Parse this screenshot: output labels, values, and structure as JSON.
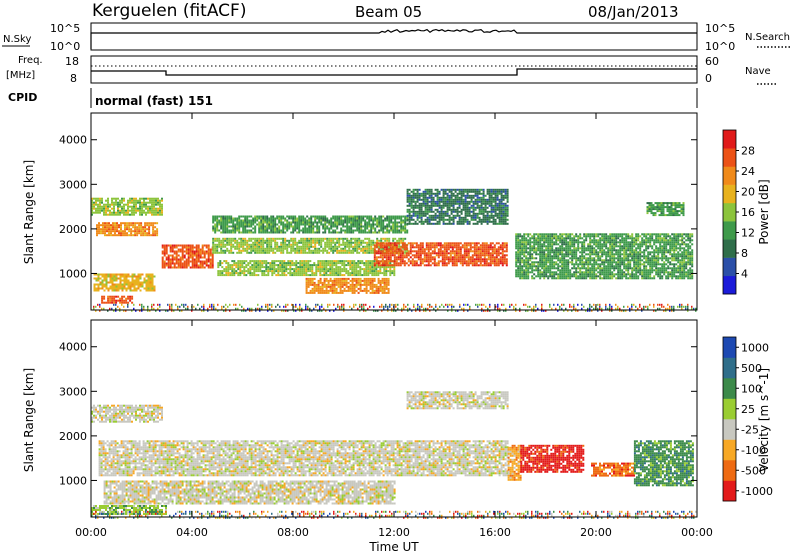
{
  "header": {
    "station": "Kerguelen (fitACF)",
    "beam": "Beam 05",
    "date": "08/Jan/2013"
  },
  "panels": {
    "nsky": {
      "label": "N.Sky",
      "tick_top": "10^5",
      "tick_bottom": "10^0"
    },
    "nsearch": {
      "label": "N.Search",
      "tick_top": "10^5",
      "tick_bottom": "10^0"
    },
    "freq": {
      "label_line1": "Freq.",
      "label_line2": "[MHz]",
      "ticks": [
        "18",
        "8"
      ]
    },
    "nave": {
      "label": "Nave",
      "ticks": [
        "60",
        "0"
      ]
    },
    "cpid": {
      "label": "CPID",
      "value": "normal (fast) 151"
    }
  },
  "colors": {
    "power": [
      "#1b1bd9",
      "#2b4fa8",
      "#2f6e4a",
      "#3e9a4a",
      "#8cc43c",
      "#e8b21e",
      "#f08a1a",
      "#ec5216",
      "#e01a1a"
    ],
    "velocity": [
      "#e31a1a",
      "#ee6a12",
      "#f7a825",
      "#c8c8c0",
      "#9acd32",
      "#3c8a4a",
      "#2f6e8a",
      "#1d49b2"
    ]
  },
  "chart_data": [
    {
      "type": "heatmap",
      "name": "power",
      "xlabel": "",
      "ylabel": "Slant Range [km]",
      "xlim": [
        0,
        24
      ],
      "ylim": [
        180,
        4600
      ],
      "x_ticks": [
        "00:00",
        "04:00",
        "08:00",
        "12:00",
        "16:00",
        "20:00",
        "00:00"
      ],
      "y_ticks": [
        1000,
        2000,
        3000,
        4000
      ],
      "colorbar": {
        "label": "Power [dB]",
        "ticks": [
          "4",
          "8",
          "12",
          "16",
          "20",
          "24",
          "28"
        ],
        "range": [
          0,
          30
        ]
      },
      "bands": [
        {
          "t": [
            0,
            2.8
          ],
          "r": [
            2300,
            2700
          ],
          "level": 16
        },
        {
          "t": [
            0.2,
            2.6
          ],
          "r": [
            1850,
            2150
          ],
          "level": 22
        },
        {
          "t": [
            0.1,
            2.5
          ],
          "r": [
            600,
            1000
          ],
          "level": 18
        },
        {
          "t": [
            0.4,
            1.6
          ],
          "r": [
            350,
            500
          ],
          "level": 26
        },
        {
          "t": [
            2.8,
            4.8
          ],
          "r": [
            1150,
            1650
          ],
          "level": 28
        },
        {
          "t": [
            4.8,
            12.5
          ],
          "r": [
            1450,
            1800
          ],
          "level": 16
        },
        {
          "t": [
            4.8,
            12.5
          ],
          "r": [
            1900,
            2300
          ],
          "level": 12
        },
        {
          "t": [
            5.0,
            12.0
          ],
          "r": [
            950,
            1300
          ],
          "level": 14
        },
        {
          "t": [
            8.5,
            11.8
          ],
          "r": [
            550,
            900
          ],
          "level": 24
        },
        {
          "t": [
            11.2,
            16.5
          ],
          "r": [
            1200,
            1700
          ],
          "level": 26
        },
        {
          "t": [
            12.5,
            16.5
          ],
          "r": [
            2100,
            2900
          ],
          "level": 8
        },
        {
          "t": [
            16.8,
            23.8
          ],
          "r": [
            900,
            1900
          ],
          "level": 10
        },
        {
          "t": [
            22.0,
            23.5
          ],
          "r": [
            2300,
            2600
          ],
          "level": 12
        }
      ]
    },
    {
      "type": "heatmap",
      "name": "velocity",
      "xlabel": "Time UT",
      "ylabel": "Slant Range [km]",
      "xlim": [
        0,
        24
      ],
      "ylim": [
        180,
        4600
      ],
      "x_ticks": [
        "00:00",
        "04:00",
        "08:00",
        "12:00",
        "16:00",
        "20:00",
        "00:00"
      ],
      "y_ticks": [
        1000,
        2000,
        3000,
        4000
      ],
      "colorbar": {
        "label": "Velocity [m s^-1]",
        "ticks": [
          "-1000",
          "-500",
          "-100",
          "-25",
          "25",
          "100",
          "500",
          "1000"
        ]
      },
      "bands": [
        {
          "t": [
            0,
            2.8
          ],
          "r": [
            2300,
            2700
          ],
          "level": 3
        },
        {
          "t": [
            0.3,
            16.5
          ],
          "r": [
            1100,
            1900
          ],
          "level": 3
        },
        {
          "t": [
            0.5,
            12.0
          ],
          "r": [
            500,
            1000
          ],
          "level": 3
        },
        {
          "t": [
            12.5,
            16.5
          ],
          "r": [
            2600,
            3000
          ],
          "level": 3
        },
        {
          "t": [
            16.5,
            17.0
          ],
          "r": [
            1000,
            1800
          ],
          "level": 2
        },
        {
          "t": [
            17.0,
            19.5
          ],
          "r": [
            1200,
            1800
          ],
          "level": 0
        },
        {
          "t": [
            19.8,
            21.5
          ],
          "r": [
            1100,
            1400
          ],
          "level": 1
        },
        {
          "t": [
            21.5,
            23.8
          ],
          "r": [
            900,
            1900
          ],
          "level": 5
        },
        {
          "t": [
            0.0,
            3.0
          ],
          "r": [
            250,
            450
          ],
          "level": 4
        }
      ]
    }
  ]
}
